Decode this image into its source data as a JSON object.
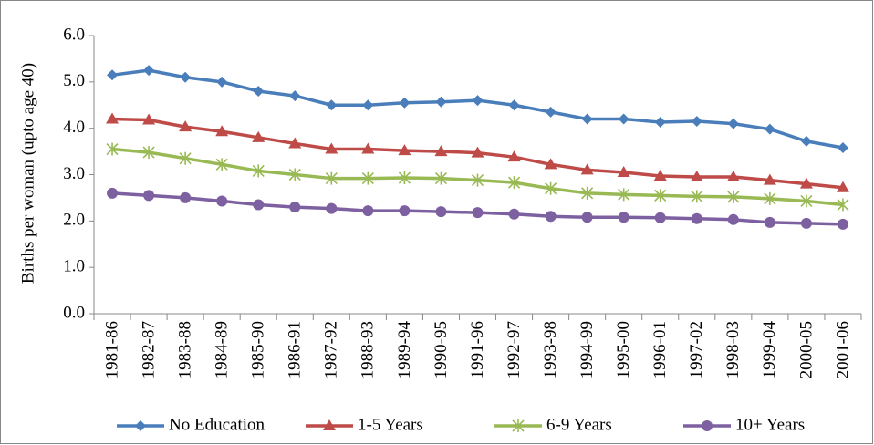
{
  "chart_data": {
    "type": "line",
    "y_label": "Births per woman (upto age 40)",
    "categories": [
      "1981-86",
      "1982-87",
      "1983-88",
      "1984-89",
      "1985-90",
      "1986-91",
      "1987-92",
      "1988-93",
      "1989-94",
      "1990-95",
      "1991-96",
      "1992-97",
      "1993-98",
      "1994-99",
      "1995-00",
      "1996-01",
      "1997-02",
      "1998-03",
      "1999-04",
      "2000-05",
      "2001-06"
    ],
    "series": [
      {
        "name": "No Education",
        "color": "#4a7ebb",
        "marker": "diamond",
        "values": [
          5.15,
          5.25,
          5.1,
          5.0,
          4.8,
          4.7,
          4.5,
          4.5,
          4.55,
          4.57,
          4.6,
          4.5,
          4.35,
          4.2,
          4.2,
          4.13,
          4.15,
          4.1,
          3.98,
          3.72,
          3.58
        ]
      },
      {
        "name": "1-5 Years",
        "color": "#be4b48",
        "marker": "triangle",
        "values": [
          4.2,
          4.18,
          4.03,
          3.93,
          3.8,
          3.67,
          3.55,
          3.55,
          3.52,
          3.5,
          3.47,
          3.38,
          3.22,
          3.1,
          3.05,
          2.97,
          2.95,
          2.95,
          2.88,
          2.8,
          2.72
        ]
      },
      {
        "name": "6-9 Years",
        "color": "#98b954",
        "marker": "asterisk",
        "values": [
          3.55,
          3.48,
          3.35,
          3.22,
          3.08,
          3.0,
          2.92,
          2.92,
          2.93,
          2.92,
          2.88,
          2.83,
          2.7,
          2.6,
          2.57,
          2.55,
          2.53,
          2.52,
          2.48,
          2.43,
          2.35
        ]
      },
      {
        "name": "10+ Years",
        "color": "#7d60a0",
        "marker": "circle",
        "values": [
          2.6,
          2.55,
          2.5,
          2.43,
          2.35,
          2.3,
          2.27,
          2.22,
          2.22,
          2.2,
          2.18,
          2.15,
          2.1,
          2.08,
          2.08,
          2.07,
          2.05,
          2.03,
          1.97,
          1.95,
          1.93
        ]
      }
    ],
    "ylim": [
      0,
      6
    ],
    "yticks": [
      {
        "value": 0,
        "label": "0.0"
      },
      {
        "value": 1,
        "label": "1.0"
      },
      {
        "value": 2,
        "label": "2.0"
      },
      {
        "value": 3,
        "label": "3.0"
      },
      {
        "value": 4,
        "label": "4.0"
      },
      {
        "value": 5,
        "label": "5.0"
      },
      {
        "value": 6,
        "label": "6.0"
      }
    ],
    "grid": false,
    "legend": "bottom"
  }
}
